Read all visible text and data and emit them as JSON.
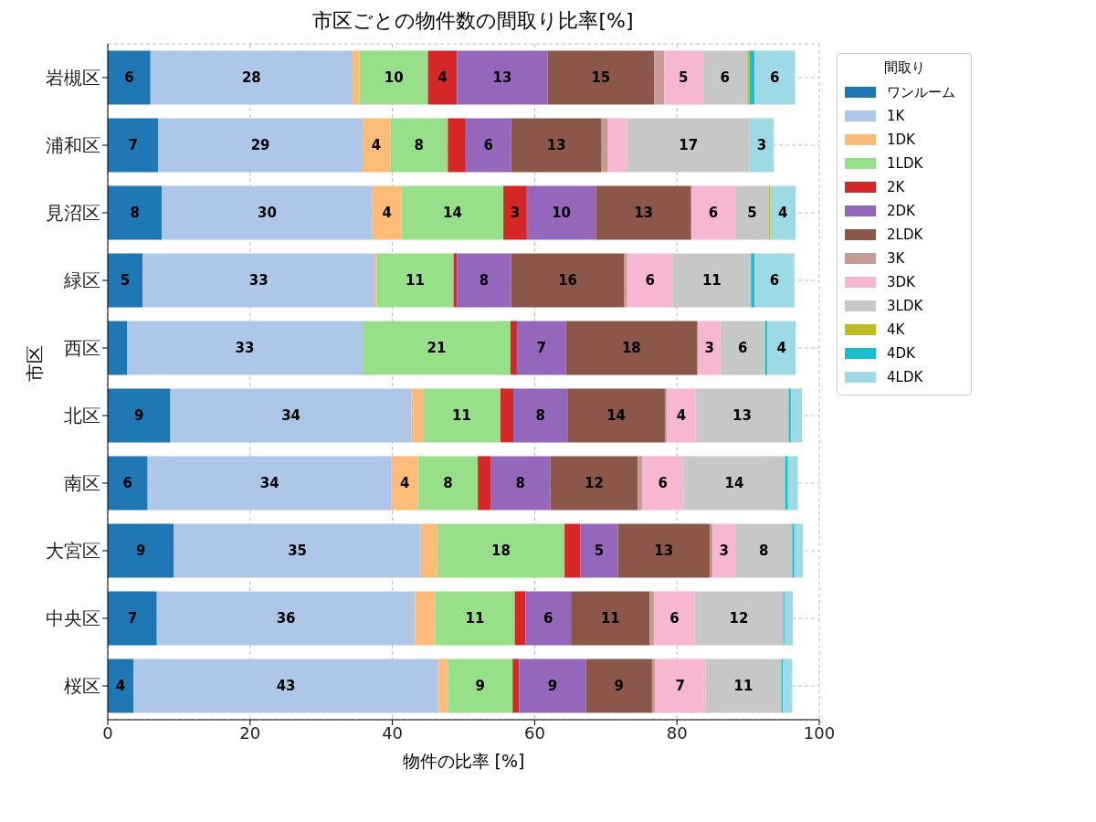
{
  "chart_data": {
    "type": "bar",
    "orientation": "horizontal",
    "stacked": true,
    "title": "市区ごとの物件数の間取り比率[%]",
    "xlabel": "物件の比率 [%]",
    "ylabel": "市区",
    "legend_title": "間取り",
    "legend": "top right",
    "grid": true,
    "categories": [
      "岩槻区",
      "浦和区",
      "見沼区",
      "緑区",
      "西区",
      "北区",
      "南区",
      "大宮区",
      "中央区",
      "桜区"
    ],
    "xlim": [
      0,
      100
    ],
    "xticks": [
      0,
      20,
      40,
      60,
      80,
      100
    ],
    "series": [
      {
        "name": "ワンルーム",
        "color": "#1f77b4",
        "values": [
          6.0,
          7.1,
          7.6,
          4.9,
          2.7,
          8.8,
          5.6,
          9.3,
          6.9,
          3.6
        ],
        "value_labels": [
          "6",
          "7",
          "8",
          "5",
          null,
          "9",
          "6",
          "9",
          "7",
          "4"
        ]
      },
      {
        "name": "1K",
        "color": "#aec7e8",
        "values": [
          28.4,
          28.7,
          29.6,
          32.6,
          33.1,
          33.9,
          34.3,
          34.7,
          36.3,
          42.9
        ],
        "value_labels": [
          "28",
          "29",
          "30",
          "33",
          "33",
          "34",
          "34",
          "35",
          "36",
          "43"
        ]
      },
      {
        "name": "1DK",
        "color": "#ffbb78",
        "values": [
          1.0,
          3.9,
          4.1,
          0.3,
          0,
          1.6,
          3.7,
          2.3,
          2.8,
          1.3
        ],
        "value_labels": [
          null,
          "4",
          "4",
          null,
          null,
          null,
          "4",
          null,
          null,
          null
        ]
      },
      {
        "name": "1LDK",
        "color": "#98df8a",
        "values": [
          9.6,
          8.1,
          14.3,
          10.8,
          20.8,
          10.9,
          8.4,
          17.9,
          11.2,
          9.1
        ],
        "value_labels": [
          "10",
          "8",
          "14",
          "11",
          "21",
          "11",
          "8",
          "18",
          "11",
          "9"
        ]
      },
      {
        "name": "2K",
        "color": "#d62728",
        "values": [
          4.1,
          2.5,
          3.3,
          0.5,
          0.9,
          1.8,
          1.8,
          2.2,
          1.5,
          0.9
        ],
        "value_labels": [
          "4",
          null,
          "3",
          null,
          null,
          null,
          null,
          null,
          null,
          null
        ]
      },
      {
        "name": "2DK",
        "color": "#9467bd",
        "values": [
          12.7,
          6.4,
          9.7,
          7.6,
          6.9,
          7.6,
          8.4,
          5.3,
          6.4,
          9.4
        ],
        "value_labels": [
          "13",
          "6",
          "10",
          "8",
          "7",
          "8",
          "8",
          "5",
          "6",
          "9"
        ]
      },
      {
        "name": "2LDK",
        "color": "#8c564b",
        "values": [
          15.0,
          12.7,
          13.4,
          15.9,
          18.4,
          13.7,
          12.3,
          12.9,
          11.1,
          9.3
        ],
        "value_labels": [
          "15",
          "13",
          "13",
          "16",
          "18",
          "14",
          "12",
          "13",
          "11",
          "9"
        ]
      },
      {
        "name": "3K",
        "color": "#c49c94",
        "values": [
          1.4,
          0.9,
          0,
          0.4,
          0.2,
          0.3,
          0.6,
          0.4,
          0.6,
          0.4
        ],
        "value_labels": [
          null,
          null,
          null,
          null,
          null,
          null,
          null,
          null,
          null,
          null
        ]
      },
      {
        "name": "3DK",
        "color": "#f7b6d2",
        "values": [
          5.4,
          2.7,
          6.2,
          6.4,
          3.1,
          4.0,
          5.8,
          3.2,
          5.7,
          7.1
        ],
        "value_labels": [
          "5",
          null,
          "6",
          "6",
          "3",
          "4",
          "6",
          "3",
          "6",
          "7"
        ]
      },
      {
        "name": "3LDK",
        "color": "#c7c7c7",
        "values": [
          6.3,
          17.2,
          4.7,
          11.0,
          6.3,
          13.1,
          14.3,
          8.0,
          12.4,
          10.7
        ],
        "value_labels": [
          "6",
          "17",
          "5",
          "11",
          "6",
          "13",
          "14",
          "8",
          "12",
          "11"
        ]
      },
      {
        "name": "4K",
        "color": "#bcbd22",
        "values": [
          0.3,
          0,
          0.2,
          0,
          0,
          0,
          0,
          0,
          0.1,
          0
        ],
        "value_labels": [
          null,
          null,
          null,
          null,
          null,
          null,
          null,
          null,
          null,
          null
        ]
      },
      {
        "name": "4DK",
        "color": "#17becf",
        "values": [
          0.7,
          0,
          0,
          0.5,
          0.3,
          0.3,
          0.4,
          0.3,
          0.1,
          0.2
        ],
        "value_labels": [
          null,
          null,
          null,
          null,
          null,
          null,
          null,
          null,
          null,
          null
        ]
      },
      {
        "name": "4LDK",
        "color": "#9edae5",
        "values": [
          5.7,
          3.4,
          3.6,
          5.6,
          4.0,
          1.6,
          1.4,
          1.2,
          1.2,
          1.3
        ],
        "value_labels": [
          "6",
          "3",
          "4",
          "6",
          "4",
          null,
          null,
          null,
          null,
          null
        ]
      }
    ]
  }
}
